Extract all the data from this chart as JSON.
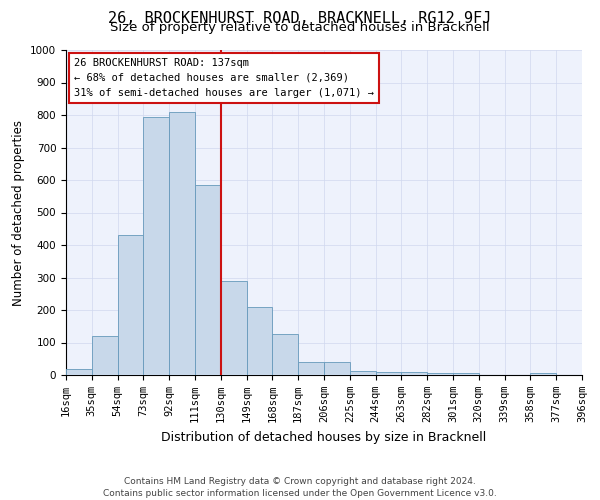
{
  "title": "26, BROCKENHURST ROAD, BRACKNELL, RG12 9FJ",
  "subtitle": "Size of property relative to detached houses in Bracknell",
  "xlabel": "Distribution of detached houses by size in Bracknell",
  "ylabel": "Number of detached properties",
  "footnote1": "Contains HM Land Registry data © Crown copyright and database right 2024.",
  "footnote2": "Contains public sector information licensed under the Open Government Licence v3.0.",
  "bin_labels": [
    "16sqm",
    "35sqm",
    "54sqm",
    "73sqm",
    "92sqm",
    "111sqm",
    "130sqm",
    "149sqm",
    "168sqm",
    "187sqm",
    "206sqm",
    "225sqm",
    "244sqm",
    "263sqm",
    "282sqm",
    "301sqm",
    "320sqm",
    "339sqm",
    "358sqm",
    "377sqm",
    "396sqm"
  ],
  "bar_values": [
    18,
    120,
    430,
    795,
    810,
    585,
    290,
    210,
    125,
    40,
    40,
    12,
    10,
    10,
    5,
    5,
    0,
    0,
    5,
    0
  ],
  "bar_color": "#c8d8ea",
  "bar_edge_color": "#6699bb",
  "annotation_text": "26 BROCKENHURST ROAD: 137sqm\n← 68% of detached houses are smaller (2,369)\n31% of semi-detached houses are larger (1,071) →",
  "annotation_box_facecolor": "#ffffff",
  "annotation_box_edgecolor": "#cc1111",
  "vline_color": "#cc1111",
  "vline_position": 5.5,
  "ylim": [
    0,
    1000
  ],
  "yticks": [
    0,
    100,
    200,
    300,
    400,
    500,
    600,
    700,
    800,
    900,
    1000
  ],
  "grid_color": "#d0d8ee",
  "bg_color": "#eef2fc",
  "title_fontsize": 11,
  "subtitle_fontsize": 9.5,
  "xlabel_fontsize": 9,
  "ylabel_fontsize": 8.5,
  "tick_fontsize": 7.5,
  "annot_fontsize": 7.5,
  "footnote_fontsize": 6.5
}
